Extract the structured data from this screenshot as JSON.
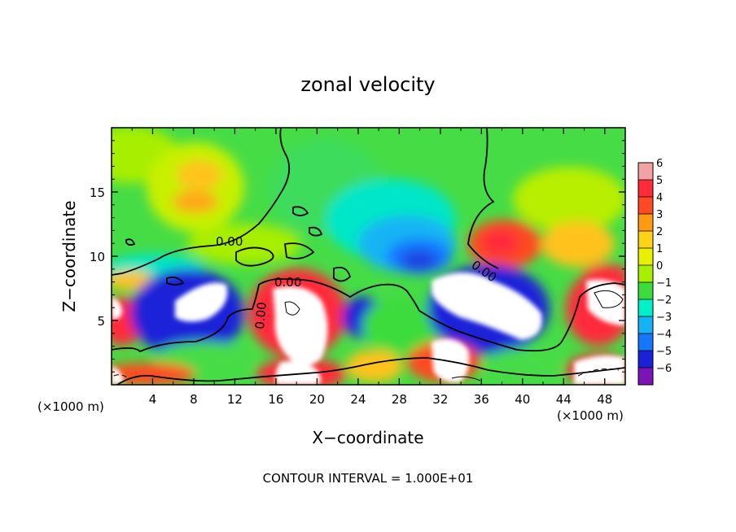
{
  "chart_data": {
    "type": "heatmap",
    "title": "zonal velocity",
    "xlabel": "X−coordinate",
    "ylabel": "Z−coordinate",
    "x_unit_label": "(×1000 m)",
    "y_unit_label": "(×1000 m)",
    "xlim": [
      0,
      50
    ],
    "ylim": [
      0,
      20
    ],
    "x_ticks": [
      4,
      8,
      12,
      16,
      20,
      24,
      28,
      32,
      36,
      40,
      44,
      48
    ],
    "y_ticks": [
      5,
      10,
      15
    ],
    "colorbar": {
      "levels": [
        6,
        5,
        4,
        3,
        2,
        1,
        0,
        -1,
        -2,
        -3,
        -4,
        -5,
        -6
      ],
      "labels": [
        "6",
        "5",
        "4",
        "3",
        "2",
        "1",
        "0",
        "−1",
        "−2",
        "−3",
        "−4",
        "−5",
        "−6"
      ],
      "colors": [
        "#f2a2a2",
        "#ff2a3a",
        "#ff4a24",
        "#ff9a12",
        "#ffd21a",
        "#e8f000",
        "#a8ee00",
        "#3cdc3c",
        "#00f0c8",
        "#14b4f4",
        "#1478ff",
        "#1a22d8",
        "#7a14b4"
      ],
      "out_of_range_color": "#ffffff"
    },
    "contour_labels": [
      "0.00",
      "0.00",
      "0.00",
      "0.00"
    ],
    "footer": "CONTOUR INTERVAL = 1.000E+01"
  }
}
